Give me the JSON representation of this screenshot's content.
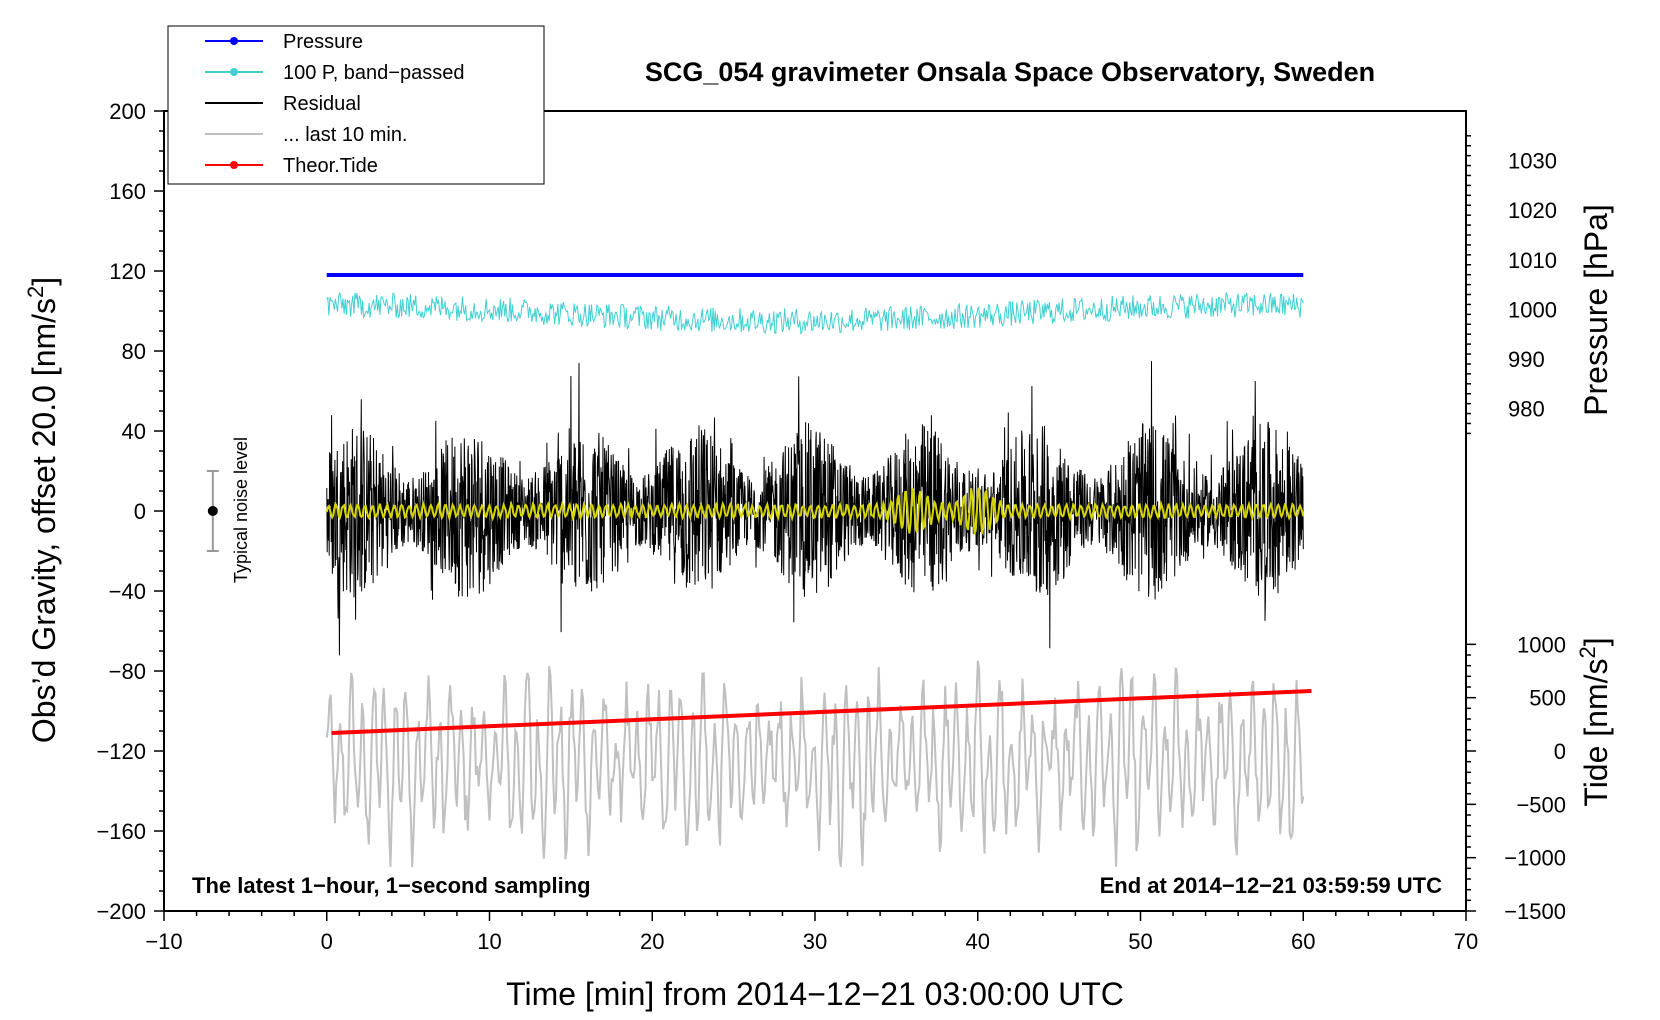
{
  "chart_data": {
    "type": "line",
    "title": "SCG_054 gravimeter Onsala Space Observatory, Sweden",
    "xlabel": "Time [min] from 2014−12−21 03:00:00 UTC",
    "ylabel_left_main": "Obs’d Gravity, offset 20.0 [nm/s",
    "ylabel_left_sup": "2",
    "ylabel_left_end": "]",
    "ylabel_right_top": "Pressure [hPa]",
    "ylabel_right_bottom_main": "Tide [nm/s",
    "ylabel_right_bottom_sup": "2",
    "ylabel_right_bottom_end": "]",
    "xlim": [
      -10,
      70
    ],
    "ylim": [
      -200,
      200
    ],
    "x_ticks": [
      "−10",
      "0",
      "10",
      "20",
      "30",
      "40",
      "50",
      "60",
      "70"
    ],
    "y_ticks": [
      "200",
      "160",
      "120",
      "80",
      "40",
      "0",
      "−40",
      "−80",
      "−120",
      "−160",
      "−200"
    ],
    "pressure_axis": {
      "range": [
        940,
        1040
      ],
      "ticks": [
        "1030",
        "1020",
        "1010",
        "1000",
        "990",
        "980"
      ]
    },
    "tide_axis": {
      "range": [
        -1500,
        1500
      ],
      "ticks": [
        "1000",
        "500",
        "0",
        "−500",
        "−1000",
        "−1500"
      ]
    },
    "annotation_left": "The latest 1−hour, 1−second sampling",
    "annotation_right": "End at 2014−12−21 03:59:59 UTC",
    "noise_label": "Typical noise level",
    "noise_bar": {
      "x": -7,
      "center": 0,
      "half_range": 20
    },
    "legend": [
      {
        "label": "Pressure",
        "color": "#0000ff",
        "marker": true
      },
      {
        "label": "100 P, band−passed",
        "color": "#40d0d0",
        "marker": true
      },
      {
        "label": "Residual",
        "color": "#000000",
        "marker": false
      },
      {
        "label": "... last 10 min.",
        "color": "#c0c0c0",
        "marker": false
      },
      {
        "label": "Theor.Tide",
        "color": "#ff0000",
        "marker": true
      }
    ],
    "series": [
      {
        "name": "Pressure",
        "axis": "gravity",
        "color": "#0000ff",
        "x_range": [
          0,
          60
        ],
        "value_start": 118,
        "value_end": 118
      },
      {
        "name": "100 P, band−passed",
        "axis": "gravity",
        "color": "#40d0d0",
        "x_range": [
          0,
          60
        ],
        "center": 100,
        "amplitude": 8
      },
      {
        "name": "Residual",
        "axis": "gravity",
        "color": "#000000",
        "x_range": [
          0,
          60
        ],
        "center": 0,
        "amplitude": 60
      },
      {
        "name": "Residual (smoothed)",
        "axis": "gravity",
        "color": "#d4d400",
        "x_range": [
          0,
          60
        ],
        "center": 0,
        "amplitude": 3,
        "bursts_at": [
          36,
          40
        ]
      },
      {
        "name": "... last 10 min.",
        "axis": "gravity",
        "color": "#c0c0c0",
        "x_range": [
          0,
          60
        ],
        "center": -125,
        "amplitude": 45
      },
      {
        "name": "Theor.Tide",
        "axis": "gravity",
        "color": "#ff0000",
        "x_range": [
          0.3,
          60.5
        ],
        "value_start": -111,
        "value_end": -90
      }
    ]
  }
}
